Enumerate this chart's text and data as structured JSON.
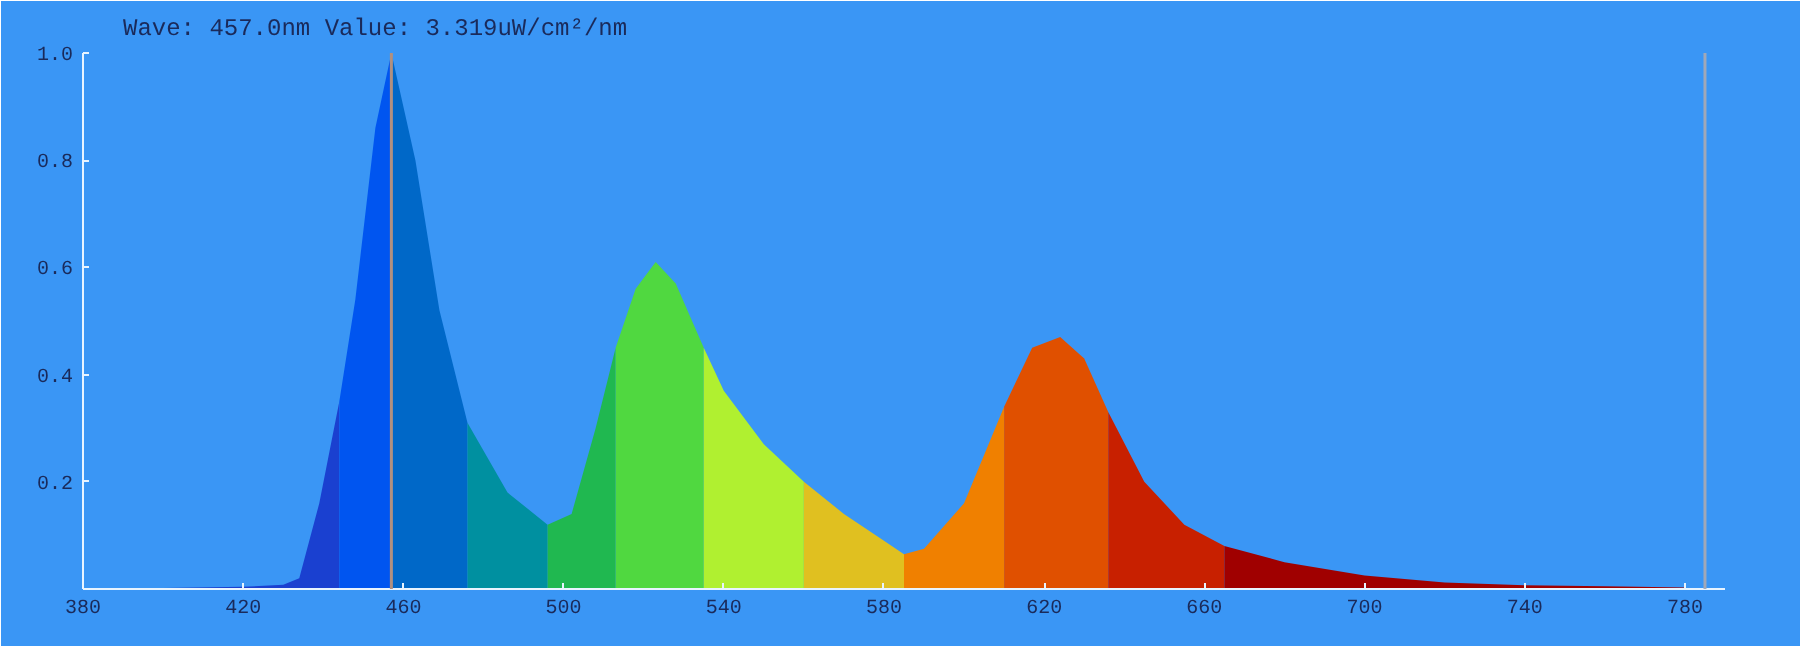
{
  "chart_data": {
    "type": "area",
    "title": "Wave: 457.0nm Value: 3.319uW/cm²/nm",
    "series": [
      {
        "color": "#1a40d0",
        "x": [
          380,
          400,
          420,
          430,
          434,
          439,
          444
        ],
        "values": [
          0,
          0.002,
          0.004,
          0.008,
          0.02,
          0.16,
          0.35
        ]
      },
      {
        "color": "#0055f0",
        "x": [
          444,
          448,
          453,
          457
        ],
        "values": [
          0.35,
          0.54,
          0.86,
          1.0
        ]
      },
      {
        "color": "#0068c8",
        "x": [
          457,
          463,
          469,
          476
        ],
        "values": [
          1.0,
          0.8,
          0.52,
          0.31
        ]
      },
      {
        "color": "#0090a0",
        "x": [
          476,
          486,
          496
        ],
        "values": [
          0.31,
          0.18,
          0.12
        ]
      },
      {
        "color": "#20b850",
        "x": [
          496,
          502,
          508,
          513
        ],
        "values": [
          0.12,
          0.14,
          0.3,
          0.45
        ]
      },
      {
        "color": "#50d840",
        "x": [
          513,
          518,
          523,
          528,
          535
        ],
        "values": [
          0.45,
          0.56,
          0.61,
          0.57,
          0.45
        ]
      },
      {
        "color": "#b0f030",
        "x": [
          535,
          540,
          550,
          560
        ],
        "values": [
          0.45,
          0.37,
          0.27,
          0.2
        ]
      },
      {
        "color": "#e0c020",
        "x": [
          560,
          570,
          580,
          585
        ],
        "values": [
          0.2,
          0.14,
          0.09,
          0.065
        ]
      },
      {
        "color": "#f08000",
        "x": [
          585,
          590,
          600,
          610
        ],
        "values": [
          0.065,
          0.075,
          0.16,
          0.34
        ]
      },
      {
        "color": "#e05000",
        "x": [
          610,
          617,
          624,
          630,
          636
        ],
        "values": [
          0.34,
          0.45,
          0.47,
          0.43,
          0.33
        ]
      },
      {
        "color": "#c82000",
        "x": [
          636,
          645,
          655,
          665
        ],
        "values": [
          0.33,
          0.2,
          0.12,
          0.08
        ]
      },
      {
        "color": "#a00000",
        "x": [
          665,
          680,
          700,
          720,
          740,
          760,
          780
        ],
        "values": [
          0.08,
          0.05,
          0.025,
          0.012,
          0.007,
          0.005,
          0.003
        ]
      }
    ],
    "xlim": [
      380,
      790
    ],
    "ylim": [
      0,
      1.0
    ],
    "xticks": [
      380,
      420,
      460,
      500,
      540,
      580,
      620,
      660,
      700,
      740,
      780
    ],
    "yticks": [
      0.2,
      0.4,
      0.6,
      0.8,
      {
        "value": 1.0,
        "label": "1.0"
      }
    ],
    "ref_lines": [
      {
        "axis": "x",
        "value": 457,
        "label": null,
        "color": "#b09080"
      },
      {
        "axis": "x",
        "value": 785,
        "label": null,
        "color": "#a0a8b8"
      }
    ],
    "grid": false
  }
}
